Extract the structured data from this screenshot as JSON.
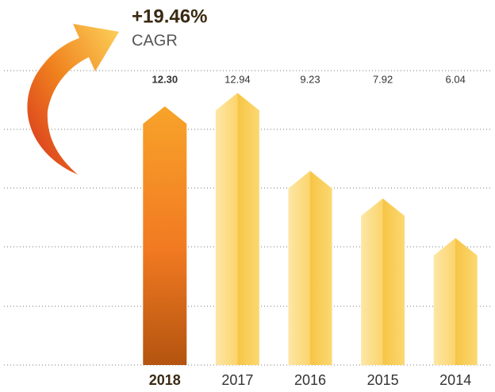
{
  "chart_data": {
    "type": "bar",
    "annotation": "+19.46%",
    "annotation_label": "CAGR",
    "categories": [
      "2018",
      "2017",
      "2016",
      "2015",
      "2014"
    ],
    "values": [
      12.3,
      12.94,
      9.23,
      7.92,
      6.04
    ],
    "value_labels": [
      "12.30",
      "12.94",
      "9.23",
      "7.92",
      "6.04"
    ],
    "color": "#fbd46c",
    "highlight": "2018",
    "highlight_color": "#f0821e",
    "ylim": [
      0,
      14
    ]
  }
}
